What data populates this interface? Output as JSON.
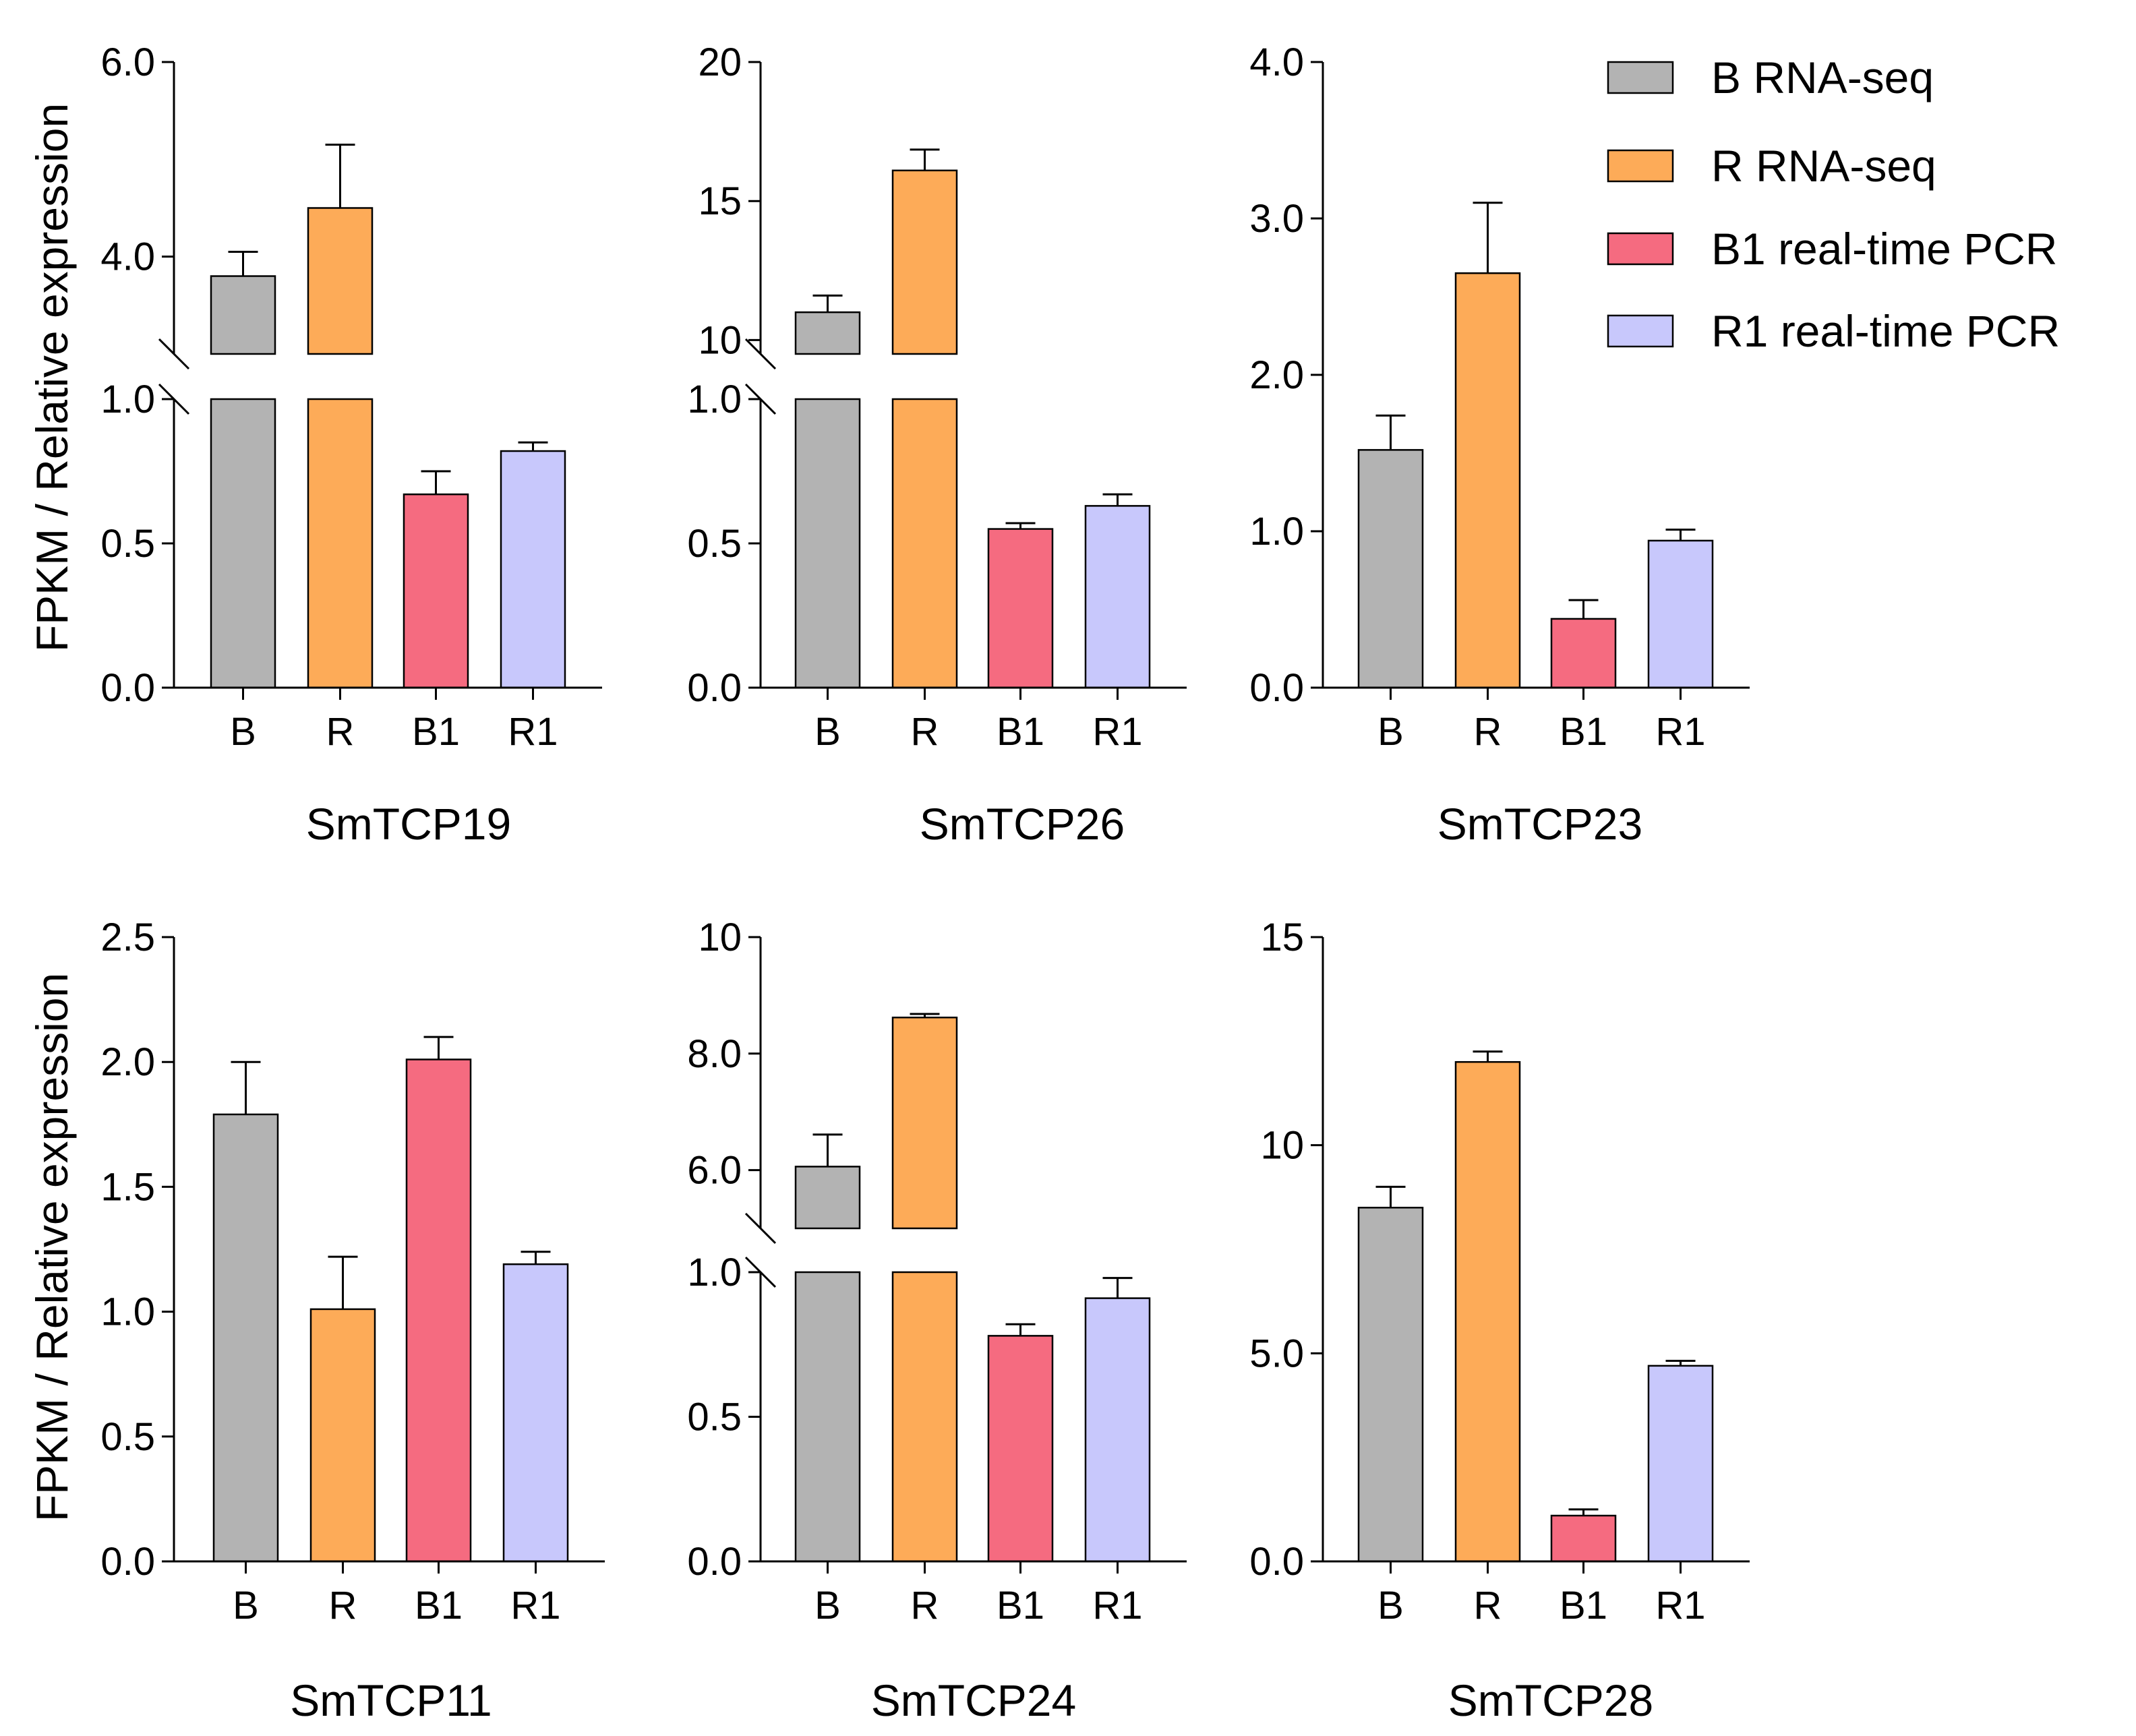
{
  "figure": {
    "ylabel": "FPKM / Relative expression",
    "colors": {
      "B": "#b3b3b3",
      "R": "#fdab58",
      "B1": "#f56b80",
      "R1": "#c8c8fc",
      "axis": "#000000"
    }
  },
  "legend": {
    "items": [
      {
        "key": "B",
        "label": "B RNA-seq"
      },
      {
        "key": "R",
        "label": "R RNA-seq"
      },
      {
        "key": "B1",
        "label": "B1 real-time PCR"
      },
      {
        "key": "R1",
        "label": "R1 real-time PCR"
      }
    ]
  },
  "chart_data": [
    {
      "type": "bar",
      "title": "SmTCP19",
      "categories": [
        "B",
        "R",
        "B1",
        "R1"
      ],
      "values": [
        3.8,
        4.5,
        0.67,
        0.82
      ],
      "errors": [
        0.25,
        0.65,
        0.08,
        0.03
      ],
      "broken_axis": true,
      "lower_range": [
        0,
        1.0
      ],
      "upper_range": [
        3.0,
        6.0
      ],
      "lower_ticks": [
        "0.0",
        "0.5",
        "1.0"
      ],
      "upper_ticks": [
        "4.0",
        "6.0"
      ],
      "upper_tick_values": [
        4.0,
        6.0
      ],
      "ylabel": "FPKM / Relative expression"
    },
    {
      "type": "bar",
      "title": "SmTCP26",
      "categories": [
        "B",
        "R",
        "B1",
        "R1"
      ],
      "values": [
        11.0,
        16.1,
        0.55,
        0.63
      ],
      "errors": [
        0.6,
        0.75,
        0.02,
        0.04
      ],
      "broken_axis": true,
      "lower_range": [
        0,
        1.0
      ],
      "upper_range": [
        9.5,
        20
      ],
      "lower_ticks": [
        "0.0",
        "0.5",
        "1.0"
      ],
      "upper_ticks": [
        "10",
        "15",
        "20"
      ],
      "upper_tick_values": [
        10,
        15,
        20
      ],
      "ylabel": ""
    },
    {
      "type": "bar",
      "title": "SmTCP23",
      "categories": [
        "B",
        "R",
        "B1",
        "R1"
      ],
      "values": [
        1.52,
        2.65,
        0.44,
        0.94
      ],
      "errors": [
        0.22,
        0.45,
        0.12,
        0.07
      ],
      "broken_axis": false,
      "ylim": [
        0,
        4.0
      ],
      "ticks": [
        "0.0",
        "1.0",
        "2.0",
        "3.0",
        "4.0"
      ],
      "tick_values": [
        0,
        1.0,
        2.0,
        3.0,
        4.0
      ],
      "ylabel": ""
    },
    {
      "type": "bar",
      "title": "SmTCP11",
      "categories": [
        "B",
        "R",
        "B1",
        "R1"
      ],
      "values": [
        1.79,
        1.01,
        2.01,
        1.19
      ],
      "errors": [
        0.21,
        0.21,
        0.09,
        0.05
      ],
      "broken_axis": false,
      "ylim": [
        0,
        2.5
      ],
      "ticks": [
        "0.0",
        "0.5",
        "1.0",
        "1.5",
        "2.0",
        "2.5"
      ],
      "tick_values": [
        0,
        0.5,
        1.0,
        1.5,
        2.0,
        2.5
      ],
      "ylabel": "FPKM / Relative expression"
    },
    {
      "type": "bar",
      "title": "SmTCP24",
      "categories": [
        "B",
        "R",
        "B1",
        "R1"
      ],
      "values": [
        6.06,
        8.62,
        0.78,
        0.91
      ],
      "errors": [
        0.55,
        0.06,
        0.04,
        0.07
      ],
      "broken_axis": true,
      "lower_range": [
        0,
        1.0
      ],
      "upper_range": [
        5.0,
        10
      ],
      "lower_ticks": [
        "0.0",
        "0.5",
        "1.0"
      ],
      "upper_ticks": [
        "6.0",
        "8.0",
        "10"
      ],
      "upper_tick_values": [
        6.0,
        8.0,
        10
      ],
      "ylabel": ""
    },
    {
      "type": "bar",
      "title": "SmTCP28",
      "categories": [
        "B",
        "R",
        "B1",
        "R1"
      ],
      "values": [
        8.5,
        12.0,
        1.1,
        4.7
      ],
      "errors": [
        0.5,
        0.25,
        0.15,
        0.12
      ],
      "broken_axis": false,
      "ylim": [
        0,
        15
      ],
      "ticks": [
        "0.0",
        "5.0",
        "10",
        "15"
      ],
      "tick_values": [
        0,
        5.0,
        10,
        15
      ],
      "ylabel": ""
    }
  ]
}
